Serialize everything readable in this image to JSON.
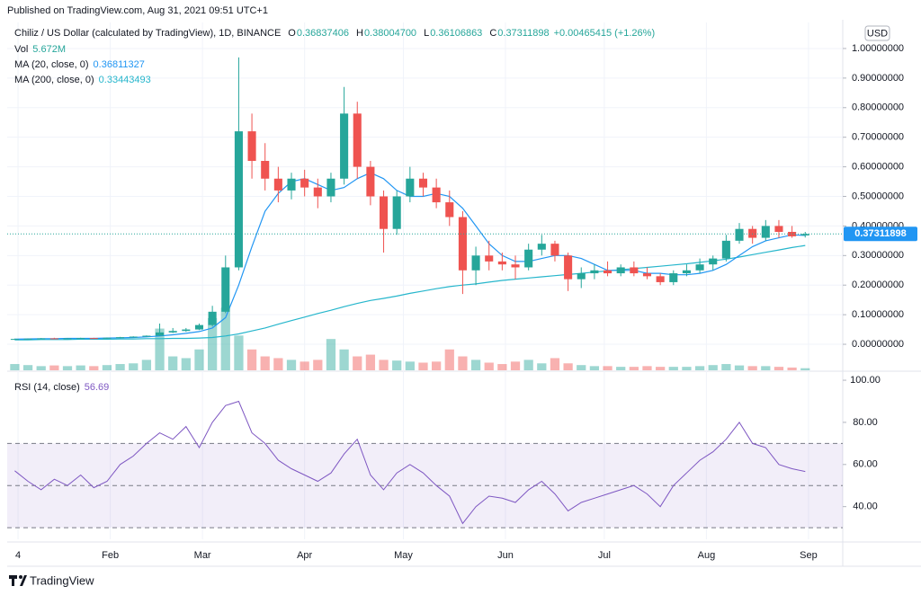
{
  "header": {
    "published": "Published on TradingView.com, Aug 31, 2021 09:51 UTC+1"
  },
  "chart_data": {
    "type": "candlestick",
    "title": "Chiliz / US Dollar (calculated by TradingView), 1D, BINANCE",
    "ohlc_labels": [
      {
        "key": "O",
        "value": "0.36837406"
      },
      {
        "key": "H",
        "value": "0.38004700"
      },
      {
        "key": "L",
        "value": "0.36106863"
      },
      {
        "key": "C",
        "value": "0.37311898"
      }
    ],
    "change": "+0.00465415 (+1.26%)",
    "currency": "USD",
    "up_color": "#26a69a",
    "down_color": "#ef5350",
    "x": [
      2,
      6,
      10,
      14,
      18,
      22,
      26,
      30,
      34,
      38,
      42,
      46,
      50,
      54,
      58,
      62,
      66,
      70,
      74,
      78,
      82,
      86,
      90,
      94,
      98,
      102,
      106,
      110,
      114,
      118,
      122,
      126,
      130,
      134,
      138,
      142,
      146,
      150,
      154,
      158,
      162,
      166,
      170,
      174,
      178,
      182,
      186,
      190,
      194,
      198,
      202,
      206,
      210,
      214,
      218,
      222,
      226,
      230,
      234,
      238,
      242
    ],
    "open": [
      0.017,
      0.018,
      0.019,
      0.02,
      0.019,
      0.02,
      0.021,
      0.02,
      0.022,
      0.024,
      0.026,
      0.029,
      0.04,
      0.045,
      0.05,
      0.065,
      0.11,
      0.26,
      0.72,
      0.62,
      0.56,
      0.52,
      0.56,
      0.53,
      0.5,
      0.56,
      0.78,
      0.6,
      0.5,
      0.39,
      0.5,
      0.56,
      0.53,
      0.48,
      0.43,
      0.25,
      0.3,
      0.28,
      0.27,
      0.26,
      0.32,
      0.34,
      0.3,
      0.22,
      0.24,
      0.25,
      0.24,
      0.26,
      0.24,
      0.23,
      0.21,
      0.24,
      0.25,
      0.27,
      0.29,
      0.35,
      0.39,
      0.36,
      0.4,
      0.38,
      0.368
    ],
    "high": [
      0.019,
      0.02,
      0.021,
      0.022,
      0.021,
      0.022,
      0.022,
      0.023,
      0.025,
      0.027,
      0.03,
      0.07,
      0.055,
      0.055,
      0.07,
      0.13,
      0.3,
      0.97,
      0.78,
      0.68,
      0.6,
      0.58,
      0.59,
      0.56,
      0.58,
      0.87,
      0.82,
      0.62,
      0.52,
      0.52,
      0.6,
      0.58,
      0.56,
      0.52,
      0.45,
      0.33,
      0.35,
      0.31,
      0.3,
      0.34,
      0.37,
      0.35,
      0.31,
      0.26,
      0.27,
      0.28,
      0.27,
      0.28,
      0.26,
      0.24,
      0.25,
      0.27,
      0.29,
      0.3,
      0.37,
      0.41,
      0.4,
      0.42,
      0.42,
      0.4,
      0.38
    ],
    "low": [
      0.016,
      0.017,
      0.018,
      0.018,
      0.018,
      0.019,
      0.019,
      0.019,
      0.021,
      0.023,
      0.025,
      0.028,
      0.038,
      0.042,
      0.048,
      0.06,
      0.105,
      0.25,
      0.56,
      0.52,
      0.48,
      0.49,
      0.5,
      0.46,
      0.48,
      0.54,
      0.56,
      0.47,
      0.31,
      0.37,
      0.48,
      0.5,
      0.46,
      0.4,
      0.17,
      0.2,
      0.25,
      0.25,
      0.22,
      0.25,
      0.3,
      0.28,
      0.18,
      0.19,
      0.22,
      0.23,
      0.23,
      0.23,
      0.22,
      0.2,
      0.2,
      0.23,
      0.24,
      0.25,
      0.28,
      0.34,
      0.34,
      0.35,
      0.36,
      0.36,
      0.361
    ],
    "close": [
      0.018,
      0.019,
      0.02,
      0.019,
      0.02,
      0.021,
      0.02,
      0.022,
      0.024,
      0.026,
      0.029,
      0.04,
      0.045,
      0.05,
      0.065,
      0.11,
      0.26,
      0.72,
      0.62,
      0.56,
      0.52,
      0.56,
      0.53,
      0.5,
      0.56,
      0.78,
      0.6,
      0.5,
      0.39,
      0.5,
      0.56,
      0.53,
      0.48,
      0.43,
      0.25,
      0.3,
      0.28,
      0.27,
      0.26,
      0.32,
      0.34,
      0.3,
      0.22,
      0.24,
      0.25,
      0.24,
      0.26,
      0.24,
      0.23,
      0.21,
      0.24,
      0.25,
      0.27,
      0.29,
      0.35,
      0.39,
      0.36,
      0.4,
      0.38,
      0.365,
      0.373
    ],
    "xlim": [
      -0.3,
      253.4
    ],
    "xticks": [
      {
        "value": 3,
        "label": "4"
      },
      {
        "value": 31,
        "label": "Feb"
      },
      {
        "value": 59,
        "label": "Mar"
      },
      {
        "value": 90,
        "label": "Apr"
      },
      {
        "value": 120,
        "label": "May"
      },
      {
        "value": 151,
        "label": "Jun"
      },
      {
        "value": 181,
        "label": "Jul"
      },
      {
        "value": 212,
        "label": "Aug"
      },
      {
        "value": 243,
        "label": "Sep"
      }
    ],
    "ylim": [
      -0.088,
      1.088
    ],
    "yticks": [
      {
        "value": 0,
        "label": "0.00000000"
      },
      {
        "value": 0.1,
        "label": "0.10000000"
      },
      {
        "value": 0.2,
        "label": "0.20000000"
      },
      {
        "value": 0.3,
        "label": "0.30000000"
      },
      {
        "value": 0.4,
        "label": "0.40000000"
      },
      {
        "value": 0.5,
        "label": "0.50000000"
      },
      {
        "value": 0.6,
        "label": "0.60000000"
      },
      {
        "value": 0.7,
        "label": "0.70000000"
      },
      {
        "value": 0.8,
        "label": "0.80000000"
      },
      {
        "value": 0.9,
        "label": "0.90000000"
      },
      {
        "value": 1,
        "label": "1.00000000"
      }
    ],
    "last_price": {
      "value": 0.37311898,
      "label": "0.37311898",
      "color": "#2196f3"
    },
    "volume": {
      "name": "Vol",
      "value_label": "5.672M",
      "lim": [
        0,
        1000
      ],
      "values": [
        18,
        15,
        12,
        14,
        12,
        14,
        12,
        15,
        18,
        20,
        30,
        120,
        40,
        35,
        60,
        150,
        180,
        100,
        60,
        40,
        35,
        30,
        25,
        30,
        90,
        60,
        40,
        45,
        30,
        28,
        25,
        22,
        25,
        60,
        40,
        30,
        22,
        18,
        25,
        30,
        20,
        35,
        20,
        15,
        12,
        12,
        10,
        10,
        12,
        10,
        10,
        10,
        12,
        15,
        18,
        14,
        12,
        12,
        10,
        8,
        6
      ]
    },
    "overlays": [
      {
        "name": "MA (20, close, 0)",
        "value_label": "0.36811327",
        "color": "#2196f3",
        "values": [
          0.017,
          0.018,
          0.019,
          0.019,
          0.02,
          0.02,
          0.02,
          0.021,
          0.022,
          0.023,
          0.025,
          0.028,
          0.032,
          0.037,
          0.043,
          0.055,
          0.09,
          0.2,
          0.33,
          0.45,
          0.51,
          0.55,
          0.56,
          0.54,
          0.52,
          0.53,
          0.56,
          0.58,
          0.56,
          0.52,
          0.5,
          0.5,
          0.51,
          0.5,
          0.46,
          0.4,
          0.34,
          0.3,
          0.28,
          0.28,
          0.29,
          0.3,
          0.3,
          0.29,
          0.27,
          0.25,
          0.25,
          0.25,
          0.24,
          0.24,
          0.235,
          0.235,
          0.24,
          0.25,
          0.27,
          0.3,
          0.33,
          0.35,
          0.36,
          0.37,
          0.368
        ]
      },
      {
        "name": "MA (200, close, 0)",
        "value_label": "0.33443493",
        "color": "#26b6cc",
        "values": [
          0.015,
          0.015,
          0.016,
          0.016,
          0.016,
          0.017,
          0.017,
          0.017,
          0.018,
          0.018,
          0.019,
          0.019,
          0.02,
          0.02,
          0.021,
          0.023,
          0.028,
          0.035,
          0.045,
          0.055,
          0.068,
          0.08,
          0.092,
          0.104,
          0.115,
          0.127,
          0.138,
          0.148,
          0.155,
          0.163,
          0.172,
          0.18,
          0.188,
          0.195,
          0.2,
          0.204,
          0.21,
          0.216,
          0.22,
          0.224,
          0.228,
          0.232,
          0.236,
          0.24,
          0.244,
          0.248,
          0.252,
          0.256,
          0.26,
          0.264,
          0.268,
          0.272,
          0.277,
          0.282,
          0.288,
          0.295,
          0.303,
          0.311,
          0.319,
          0.327,
          0.334
        ]
      }
    ],
    "rsi": {
      "name": "RSI (14, close)",
      "value_label": "56.69",
      "color": "#7e57c2",
      "ylim": [
        24.5,
        101.3
      ],
      "yticks": [
        {
          "value": 40,
          "label": "40.00"
        },
        {
          "value": 60,
          "label": "60.00"
        },
        {
          "value": 80,
          "label": "80.00"
        },
        {
          "value": 100,
          "label": "100.00"
        }
      ],
      "levels": [
        30,
        50,
        70
      ],
      "values": [
        57,
        52,
        48,
        53,
        50,
        55,
        49,
        52,
        60,
        64,
        70,
        75,
        72,
        78,
        68,
        80,
        88,
        90,
        75,
        70,
        62,
        58,
        55,
        52,
        56,
        65,
        72,
        55,
        48,
        56,
        60,
        56,
        50,
        45,
        32,
        40,
        45,
        44,
        42,
        48,
        52,
        46,
        38,
        42,
        44,
        46,
        48,
        50,
        46,
        40,
        50,
        56,
        62,
        66,
        72,
        80,
        70,
        68,
        60,
        58,
        56.69
      ]
    }
  },
  "footer": {
    "brand": "TradingView"
  }
}
